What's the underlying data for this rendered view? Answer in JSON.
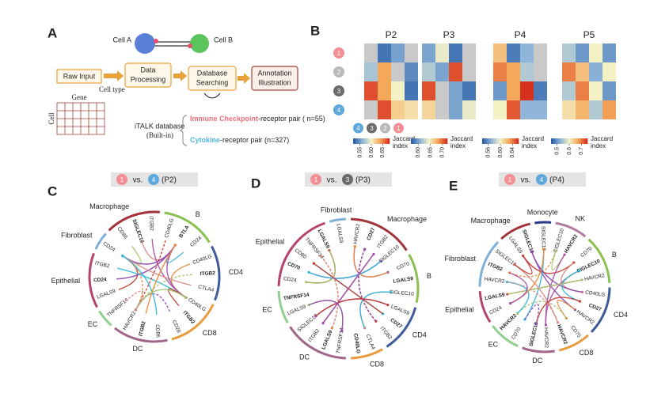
{
  "panel_a": {
    "label": "A",
    "cell_a": "Cell A",
    "cell_b": "Cell B",
    "steps": [
      [
        "Raw Input"
      ],
      [
        "Data",
        "Processing"
      ],
      [
        "Database",
        "Searching"
      ],
      [
        "Annotation",
        "Illustration"
      ]
    ],
    "matrix_gene": "Gene",
    "matrix_cell_type": "Cell type",
    "matrix_cell": "Cell",
    "database": "iTALK database",
    "database_note": "(Built-in)",
    "pairs": [
      {
        "name": "Immune Checkpoint",
        "text": "-receptor pair ( n=55)"
      },
      {
        "name": "Cytokine",
        "text": "-receptor pair (n=327)"
      }
    ]
  },
  "panel_b": {
    "label": "B",
    "row_labels": [
      "1",
      "2",
      "3",
      "4"
    ],
    "col_labels": [
      "4",
      "3",
      "2",
      "1"
    ],
    "colorbar_label": [
      "Jaccard",
      "index"
    ],
    "heatmaps": [
      {
        "title": "P2",
        "range": [
          0.52,
          0.68
        ],
        "values": [
          [
            null,
            0.53,
            0.55,
            null
          ],
          [
            0.57,
            0.64,
            null,
            0.54
          ],
          [
            0.67,
            0.64,
            0.6,
            0.53
          ],
          [
            null,
            0.67,
            0.62,
            0.61
          ]
        ],
        "ticks": [
          {
            "value": 0.55,
            "label": "0.55"
          },
          {
            "value": 0.6,
            "label": "0.60"
          },
          {
            "value": 0.65,
            "label": "0.65"
          }
        ]
      },
      {
        "title": "P3",
        "range": [
          0.57,
          0.72
        ],
        "values": [
          [
            0.6,
            0.64,
            0.58,
            null
          ],
          [
            0.62,
            0.6,
            0.71,
            null
          ],
          [
            0.71,
            null,
            0.6,
            0.58
          ],
          [
            0.66,
            null,
            0.6,
            0.64
          ]
        ],
        "ticks": [
          {
            "value": 0.6,
            "label": "0.60"
          },
          {
            "value": 0.65,
            "label": "0.65"
          },
          {
            "value": 0.7,
            "label": "0.70"
          }
        ]
      },
      {
        "title": "P4",
        "range": [
          0.54,
          0.66
        ],
        "values": [
          [
            0.62,
            0.55,
            0.57,
            null
          ],
          [
            0.64,
            0.63,
            0.58,
            null
          ],
          [
            0.56,
            0.63,
            0.66,
            0.55
          ],
          [
            0.6,
            0.65,
            0.57,
            0.57
          ]
        ],
        "ticks": [
          {
            "value": 0.56,
            "label": "0.56"
          },
          {
            "value": 0.6,
            "label": "0.60"
          },
          {
            "value": 0.64,
            "label": "0.64"
          }
        ]
      },
      {
        "title": "P5",
        "range": [
          0.45,
          0.75
        ],
        "values": [
          [
            0.55,
            0.5,
            0.6,
            0.5
          ],
          [
            0.7,
            0.65,
            0.52,
            0.6
          ],
          [
            0.55,
            0.7,
            0.6,
            0.5
          ],
          [
            0.62,
            0.66,
            0.55,
            0.68
          ]
        ],
        "ticks": [
          0.5,
          0.6,
          0.7
        ]
      }
    ]
  },
  "chord_panels": [
    {
      "label": "C",
      "header": {
        "left": "1",
        "vs": "vs.",
        "right": "4",
        "patient": "(P2)"
      },
      "groups": [
        {
          "name": "Epithelial",
          "color": "#b5436e",
          "genes": [
            "LGALS9",
            "CD24",
            "ITGB2"
          ]
        },
        {
          "name": "Fibroblast",
          "color": "#7fb1d8",
          "genes": [
            "CD24"
          ]
        },
        {
          "name": "Macrophage",
          "color": "#a0323a",
          "genes": [
            "CD86",
            "SIGLEC10",
            "ITGB2"
          ]
        },
        {
          "name": "B",
          "color": "#8cc152",
          "genes": [
            "CD40LG",
            "BTLA",
            "CD24"
          ]
        },
        {
          "name": "CD4",
          "color": "#3d5a99",
          "genes": [
            "CD40LG",
            "ITGB2",
            "CTLA4"
          ]
        },
        {
          "name": "CD8",
          "color": "#e89a3c",
          "genes": [
            "CD40LG",
            "ITGB2",
            "CD28"
          ]
        },
        {
          "name": "DC",
          "color": "#a0668a",
          "genes": [
            "CD86",
            "ITGB2",
            "HAVCR2"
          ]
        },
        {
          "name": "EC",
          "color": "#8fcf8f",
          "genes": [
            "TNFRSF14"
          ]
        }
      ]
    },
    {
      "label": "D",
      "header": {
        "left": "1",
        "vs": "vs.",
        "right": "3",
        "patient": "(P3)"
      },
      "groups": [
        {
          "name": "Epithelial",
          "color": "#b5436e",
          "genes": [
            "CD24",
            "CD70",
            "CD80",
            "TNFRSF14",
            "LGALS9"
          ]
        },
        {
          "name": "Fibroblast",
          "color": "#7fb1d8",
          "genes": [
            "LGALS9"
          ]
        },
        {
          "name": "Macrophage",
          "color": "#a0323a",
          "genes": [
            "HAVCR2",
            "CD27",
            "ITGB2",
            "SIGLEC10"
          ]
        },
        {
          "name": "B",
          "color": "#8cc152",
          "genes": [
            "CD70",
            "LGALS9",
            "SIGLEC10"
          ]
        },
        {
          "name": "CD4",
          "color": "#3d5a99",
          "genes": [
            "LGALS9",
            "CD27",
            "ITGB2"
          ]
        },
        {
          "name": "CD8",
          "color": "#e89a3c",
          "genes": [
            "CTLA4",
            "CD40LG"
          ]
        },
        {
          "name": "DC",
          "color": "#a0668a",
          "genes": [
            "TNFRSF14",
            "LGALS9",
            "ITGB2",
            "SIGLEC10"
          ]
        },
        {
          "name": "EC",
          "color": "#8fcf8f",
          "genes": [
            "LGALS9",
            "TNFRSF14"
          ]
        }
      ]
    },
    {
      "label": "E",
      "header": {
        "left": "1",
        "vs": "vs.",
        "right": "4",
        "patient": "(P4)"
      },
      "groups": [
        {
          "name": "Macrophage",
          "color": "#a0323a",
          "genes": [
            "LGALS9",
            "SIGLEC10"
          ]
        },
        {
          "name": "Monocyte",
          "color": "#2b3a8c",
          "genes": [
            "SIGLEC10"
          ]
        },
        {
          "name": "NK",
          "color": "#b07aa1",
          "genes": [
            "SIGLEC10",
            "HAVCR2"
          ]
        },
        {
          "name": "B",
          "color": "#8cc152",
          "genes": [
            "CD70",
            "SIGLEC10",
            "HAVCR2"
          ]
        },
        {
          "name": "CD4",
          "color": "#3d5a99",
          "genes": [
            "CD40LG",
            "CD27",
            "HAVCR2"
          ]
        },
        {
          "name": "CD8",
          "color": "#e89a3c",
          "genes": [
            "CD70",
            "HAVCR2"
          ]
        },
        {
          "name": "DC",
          "color": "#a0668a",
          "genes": [
            "HAVCR2",
            "SIGLEC10"
          ]
        },
        {
          "name": "EC",
          "color": "#8fcf8f",
          "genes": [
            "CD70",
            "HAVCR2"
          ]
        },
        {
          "name": "Epithelial",
          "color": "#b5436e",
          "genes": [
            "CD24",
            "LGALS9"
          ]
        },
        {
          "name": "Fibroblast",
          "color": "#7fb1d8",
          "genes": [
            "HAVCR2",
            "ITGB2",
            "SIGLEC10"
          ]
        }
      ]
    }
  ]
}
